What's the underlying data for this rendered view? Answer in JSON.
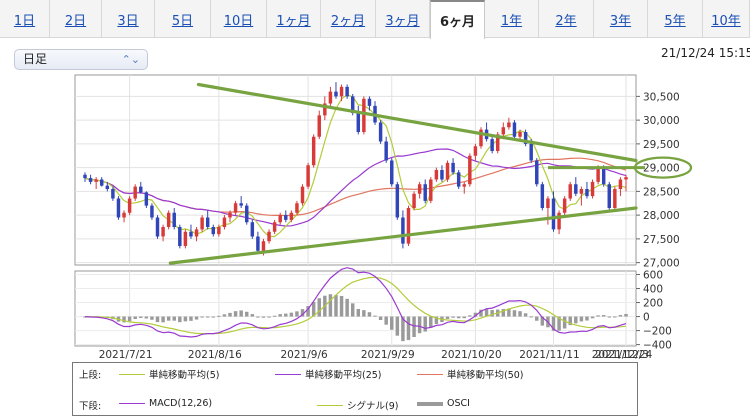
{
  "tabs": [
    {
      "label": "1日",
      "active": false
    },
    {
      "label": "2日",
      "active": false
    },
    {
      "label": "3日",
      "active": false
    },
    {
      "label": "5日",
      "active": false
    },
    {
      "label": "10日",
      "active": false
    },
    {
      "label": "1ヶ月",
      "active": false
    },
    {
      "label": "2ヶ月",
      "active": false
    },
    {
      "label": "3ヶ月",
      "active": false
    },
    {
      "label": "6ヶ月",
      "active": true
    },
    {
      "label": "1年",
      "active": false
    },
    {
      "label": "2年",
      "active": false
    },
    {
      "label": "3年",
      "active": false
    },
    {
      "label": "5年",
      "active": false
    },
    {
      "label": "10年",
      "active": false
    }
  ],
  "toolbar": {
    "period_select": "日足",
    "datetime": "21/12/24 15:15"
  },
  "colors": {
    "up": "#d83a3a",
    "down": "#2f45b8",
    "ma5": "#b3cc3a",
    "ma25": "#9a3ad0",
    "ma50": "#e07560",
    "trendline": "#77a340",
    "macd": "#9a3ad0",
    "signal": "#b3cc3a",
    "osci": "#9a9a9a"
  },
  "chart_data": [
    {
      "type": "candlestick",
      "panel": "upper",
      "y_ticks": [
        "30,500",
        "30,000",
        "29,500",
        "29,000",
        "28,500",
        "28,000",
        "27,500",
        "27,000"
      ],
      "ylim": [
        26950,
        30950
      ],
      "x_labels": [
        "2021/7/21",
        "2021/8/16",
        "2021/9/6",
        "2021/9/29",
        "2021/10/20",
        "2021/11/11",
        "2021/12/3",
        "2021/12/24"
      ],
      "highlighted_level": 29000,
      "trendlines": [
        {
          "from": [
            0.22,
            30750
          ],
          "to": [
            1.0,
            29150
          ]
        },
        {
          "from": [
            0.17,
            26990
          ],
          "to": [
            1.0,
            28150
          ]
        }
      ],
      "candles": [
        [
          28850,
          28900,
          28700,
          28780
        ],
        [
          28780,
          28850,
          28650,
          28700
        ],
        [
          28700,
          28800,
          28550,
          28750
        ],
        [
          28750,
          28800,
          28600,
          28620
        ],
        [
          28620,
          28700,
          28500,
          28550
        ],
        [
          28550,
          28600,
          28300,
          28350
        ],
        [
          28350,
          28400,
          27900,
          27950
        ],
        [
          27950,
          28100,
          27850,
          28050
        ],
        [
          28050,
          28400,
          28000,
          28350
        ],
        [
          28350,
          28650,
          28300,
          28600
        ],
        [
          28600,
          28700,
          28450,
          28480
        ],
        [
          28480,
          28500,
          28150,
          28200
        ],
        [
          28200,
          28250,
          27900,
          27950
        ],
        [
          27950,
          28000,
          27500,
          27550
        ],
        [
          27550,
          27800,
          27450,
          27750
        ],
        [
          27750,
          28100,
          27700,
          28050
        ],
        [
          28050,
          28150,
          27700,
          27750
        ],
        [
          27750,
          27800,
          27300,
          27350
        ],
        [
          27350,
          27700,
          27300,
          27650
        ],
        [
          27650,
          27800,
          27500,
          27550
        ],
        [
          27550,
          27750,
          27450,
          27700
        ],
        [
          27700,
          28000,
          27650,
          27950
        ],
        [
          27950,
          28100,
          27700,
          27750
        ],
        [
          27750,
          27800,
          27550,
          27600
        ],
        [
          27600,
          27800,
          27550,
          27750
        ],
        [
          27750,
          28000,
          27700,
          27950
        ],
        [
          27950,
          28100,
          27850,
          28050
        ],
        [
          28050,
          28300,
          28000,
          28250
        ],
        [
          28250,
          28400,
          28150,
          28200
        ],
        [
          28200,
          28250,
          27800,
          27850
        ],
        [
          27850,
          27900,
          27500,
          27550
        ],
        [
          27550,
          27650,
          27200,
          27250
        ],
        [
          27250,
          27500,
          27150,
          27450
        ],
        [
          27450,
          27700,
          27400,
          27650
        ],
        [
          27650,
          27900,
          27600,
          27850
        ],
        [
          27850,
          28050,
          27800,
          28000
        ],
        [
          28000,
          28100,
          27850,
          27900
        ],
        [
          27900,
          28100,
          27850,
          28050
        ],
        [
          28050,
          28300,
          28000,
          28250
        ],
        [
          28250,
          28650,
          28200,
          28600
        ],
        [
          28600,
          29100,
          28550,
          29050
        ],
        [
          29050,
          29700,
          29000,
          29650
        ],
        [
          29650,
          30200,
          29600,
          30100
        ],
        [
          30100,
          30500,
          30000,
          30350
        ],
        [
          30350,
          30700,
          30250,
          30600
        ],
        [
          30600,
          30800,
          30450,
          30500
        ],
        [
          30500,
          30750,
          30400,
          30700
        ],
        [
          30700,
          30750,
          30450,
          30500
        ],
        [
          30500,
          30550,
          30100,
          30150
        ],
        [
          30150,
          30300,
          29700,
          29750
        ],
        [
          29750,
          30500,
          29700,
          30450
        ],
        [
          30450,
          30500,
          30200,
          30300
        ],
        [
          30300,
          30400,
          29900,
          29950
        ],
        [
          29950,
          30000,
          29500,
          29550
        ],
        [
          29550,
          29650,
          29100,
          29150
        ],
        [
          29150,
          29200,
          28600,
          28650
        ],
        [
          28650,
          28700,
          27900,
          27950
        ],
        [
          27950,
          28100,
          27300,
          27400
        ],
        [
          27400,
          28200,
          27350,
          28150
        ],
        [
          28150,
          28500,
          28100,
          28450
        ],
        [
          28450,
          28700,
          28350,
          28650
        ],
        [
          28650,
          28750,
          28250,
          28300
        ],
        [
          28300,
          28800,
          28250,
          28750
        ],
        [
          28750,
          29000,
          28700,
          28950
        ],
        [
          28950,
          29050,
          28700,
          28750
        ],
        [
          28750,
          29150,
          28700,
          29100
        ],
        [
          29100,
          29200,
          28850,
          28900
        ],
        [
          28900,
          28950,
          28550,
          28600
        ],
        [
          28600,
          28700,
          28450,
          28650
        ],
        [
          28650,
          29300,
          28600,
          29250
        ],
        [
          29250,
          29500,
          29150,
          29450
        ],
        [
          29450,
          29850,
          29400,
          29800
        ],
        [
          29800,
          29950,
          29550,
          29600
        ],
        [
          29600,
          29700,
          29300,
          29350
        ],
        [
          29350,
          29750,
          29300,
          29700
        ],
        [
          29700,
          29950,
          29600,
          29850
        ],
        [
          29850,
          30050,
          29800,
          29950
        ],
        [
          29950,
          30000,
          29600,
          29650
        ],
        [
          29650,
          29800,
          29550,
          29750
        ],
        [
          29750,
          29800,
          29450,
          29500
        ],
        [
          29500,
          29600,
          29100,
          29150
        ],
        [
          29150,
          29200,
          28600,
          28650
        ],
        [
          28650,
          28700,
          28100,
          28150
        ],
        [
          28150,
          28400,
          27800,
          28350
        ],
        [
          28350,
          28500,
          27650,
          27700
        ],
        [
          27700,
          28100,
          27600,
          28050
        ],
        [
          28050,
          28400,
          28000,
          28350
        ],
        [
          28350,
          28700,
          28300,
          28650
        ],
        [
          28650,
          28800,
          28400,
          28450
        ],
        [
          28450,
          28600,
          28200,
          28550
        ],
        [
          28550,
          28700,
          28350,
          28400
        ],
        [
          28400,
          28750,
          28350,
          28700
        ],
        [
          28700,
          29050,
          28650,
          29000
        ],
        [
          29000,
          29050,
          28600,
          28650
        ],
        [
          28650,
          28700,
          28100,
          28150
        ],
        [
          28150,
          28600,
          28100,
          28550
        ],
        [
          28550,
          28800,
          28400,
          28750
        ],
        [
          28750,
          28850,
          28500,
          28800
        ]
      ]
    },
    {
      "type": "macd",
      "panel": "lower",
      "y_ticks": [
        "600",
        "400",
        "200",
        "0",
        "−200",
        "−400"
      ],
      "ylim": [
        -420,
        650
      ],
      "series": [
        {
          "name": "MACD(12,26)"
        },
        {
          "name": "シグナル(9)"
        },
        {
          "name": "OSCI"
        }
      ]
    }
  ],
  "legend": {
    "upper_label": "上段:",
    "lower_label": "下段:",
    "upper_items": [
      "単純移動平均(5)",
      "単純移動平均(25)",
      "単純移動平均(50)"
    ],
    "lower_items": [
      "MACD(12,26)",
      "シグナル(9)",
      "OSCI"
    ]
  }
}
